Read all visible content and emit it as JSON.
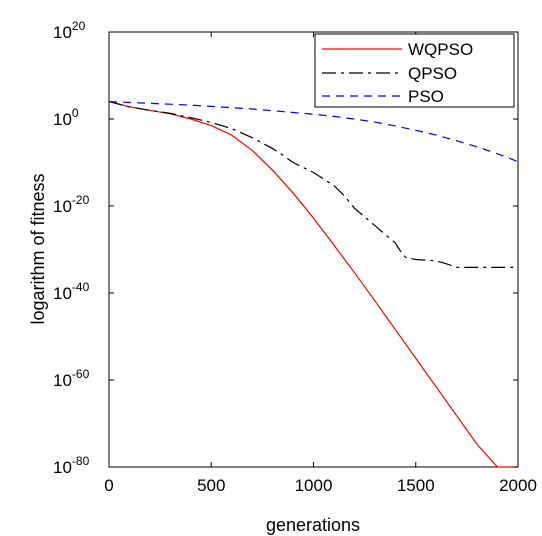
{
  "chart_data": {
    "type": "line",
    "title": "",
    "xlabel": "generations",
    "ylabel": "logarithm of fitness",
    "xlim": [
      0,
      2000
    ],
    "ylim_log10": [
      -80,
      20
    ],
    "y_scale": "log",
    "grid": false,
    "legend_position": "top-right",
    "x_ticks": [
      "0",
      "500",
      "1000",
      "1500",
      "2000"
    ],
    "y_ticks": [
      {
        "base": "10",
        "exp": "-80"
      },
      {
        "base": "10",
        "exp": "-60"
      },
      {
        "base": "10",
        "exp": "-40"
      },
      {
        "base": "10",
        "exp": "-20"
      },
      {
        "base": "10",
        "exp": "0"
      },
      {
        "base": "10",
        "exp": "20"
      }
    ],
    "series": [
      {
        "name": "WQPSO",
        "color": "#ff0000",
        "dash": "solid",
        "x": [
          0,
          100,
          200,
          300,
          400,
          500,
          600,
          700,
          800,
          900,
          1000,
          1100,
          1200,
          1300,
          1400,
          1500,
          1600,
          1700,
          1800,
          1900,
          2000
        ],
        "log10_y": [
          4,
          2.8,
          2,
          1.2,
          0,
          -1.5,
          -3.7,
          -7.2,
          -11.8,
          -17,
          -22.8,
          -29,
          -35.3,
          -41.8,
          -48.4,
          -55,
          -61.6,
          -68.2,
          -74.8,
          -81.4,
          -88
        ]
      },
      {
        "name": "QPSO",
        "color": "#000000",
        "dash": "dashdot",
        "x": [
          0,
          100,
          200,
          300,
          400,
          500,
          600,
          700,
          800,
          850,
          900,
          1000,
          1100,
          1150,
          1200,
          1300,
          1400,
          1420,
          1450,
          1500,
          1600,
          1650,
          1700,
          1800,
          2000
        ],
        "log10_y": [
          4,
          2.8,
          2,
          1.3,
          0.3,
          -0.8,
          -2.2,
          -4.3,
          -6.8,
          -8.3,
          -10,
          -12.3,
          -15.3,
          -17.6,
          -20.5,
          -24.5,
          -28.5,
          -30,
          -31.8,
          -32.3,
          -32.6,
          -33.3,
          -34.1,
          -34.1,
          -34.1
        ]
      },
      {
        "name": "PSO",
        "color": "#0000ff",
        "dash": "dashed",
        "x": [
          0,
          100,
          200,
          300,
          400,
          500,
          600,
          700,
          800,
          900,
          1000,
          1100,
          1200,
          1300,
          1400,
          1500,
          1600,
          1700,
          1800,
          1900,
          2000
        ],
        "log10_y": [
          4,
          3.8,
          3.6,
          3.4,
          3.2,
          2.9,
          2.6,
          2.3,
          1.9,
          1.5,
          1.1,
          0.6,
          0,
          -0.7,
          -1.6,
          -2.6,
          -3.7,
          -5,
          -6.4,
          -8,
          -9.8
        ]
      }
    ]
  }
}
